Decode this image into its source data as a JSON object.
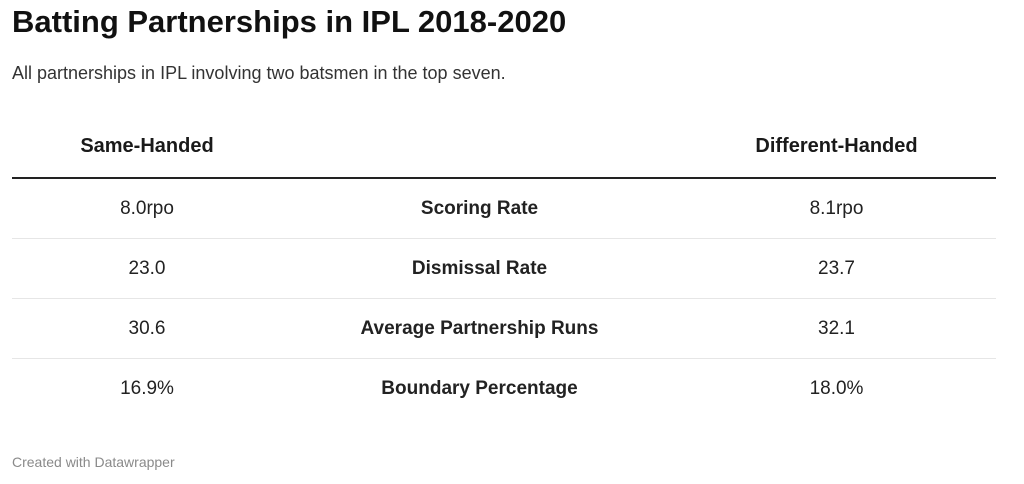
{
  "title": "Batting Partnerships in IPL 2018-2020",
  "subtitle": "All partnerships in IPL involving two batsmen in the top seven.",
  "footer": "Created with Datawrapper",
  "chart_data": {
    "type": "table",
    "columns": [
      "Same-Handed",
      "",
      "Different-Handed"
    ],
    "rows": [
      {
        "metric": "Scoring Rate",
        "same": "8.0rpo",
        "different": "8.1rpo"
      },
      {
        "metric": "Dismissal Rate",
        "same": "23.0",
        "different": "23.7"
      },
      {
        "metric": "Average Partnership Runs",
        "same": "30.6",
        "different": "32.1"
      },
      {
        "metric": "Boundary Percentage",
        "same": "16.9%",
        "different": "18.0%"
      }
    ]
  }
}
